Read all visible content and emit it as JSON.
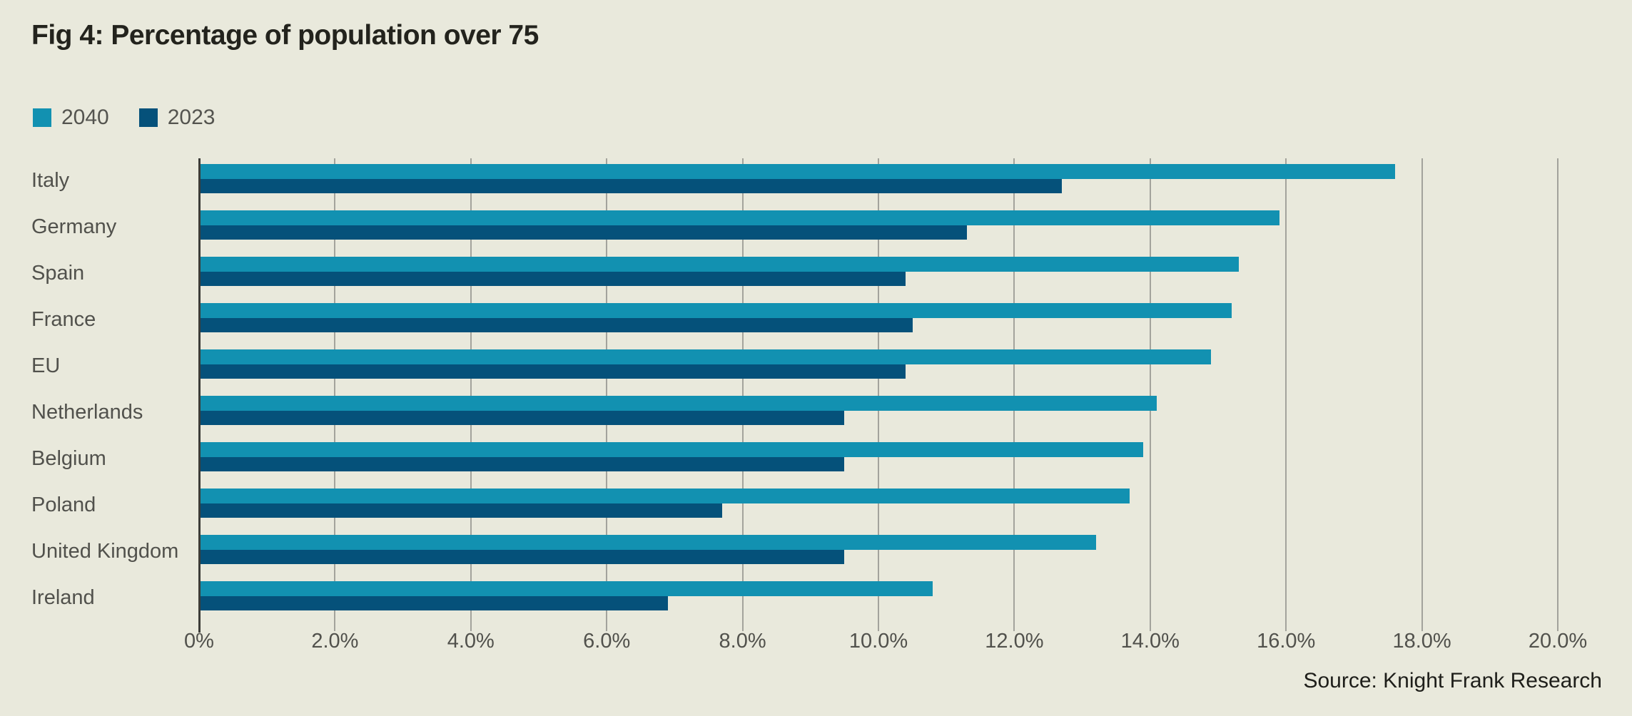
{
  "title": "Fig 4: Percentage of population over 75",
  "source": "Source: Knight Frank Research",
  "colors": {
    "background": "#e9e9dc",
    "series_2040": "#1291b1",
    "series_2023": "#05517a",
    "grid": "#a3a39c",
    "axis": "#3c3c38",
    "text_primary": "#23231d",
    "text_secondary": "#51514c"
  },
  "legend": [
    {
      "label": "2040",
      "color": "#1291b1"
    },
    {
      "label": "2023",
      "color": "#05517a"
    }
  ],
  "chart_data": {
    "type": "bar",
    "orientation": "horizontal",
    "title": "Fig 4: Percentage of population over 75",
    "categories": [
      "Italy",
      "Germany",
      "Spain",
      "France",
      "EU",
      "Netherlands",
      "Belgium",
      "Poland",
      "United Kingdom",
      "Ireland"
    ],
    "series": [
      {
        "name": "2040",
        "color": "#1291b1",
        "values": [
          17.6,
          15.9,
          15.3,
          15.2,
          14.9,
          14.1,
          13.9,
          13.7,
          13.2,
          10.8
        ]
      },
      {
        "name": "2023",
        "color": "#05517a",
        "values": [
          12.7,
          11.3,
          10.4,
          10.5,
          10.4,
          9.5,
          9.5,
          7.7,
          9.5,
          6.9
        ]
      }
    ],
    "xlabel": "",
    "ylabel": "",
    "xlim": [
      0,
      20
    ],
    "x_ticks": [
      "0%",
      "2.0%",
      "4.0%",
      "6.0%",
      "8.0%",
      "10.0%",
      "12.0%",
      "14.0%",
      "16.0%",
      "18.0%",
      "20.0%"
    ],
    "grid": true,
    "legend_position": "top-left",
    "unit": "%"
  }
}
